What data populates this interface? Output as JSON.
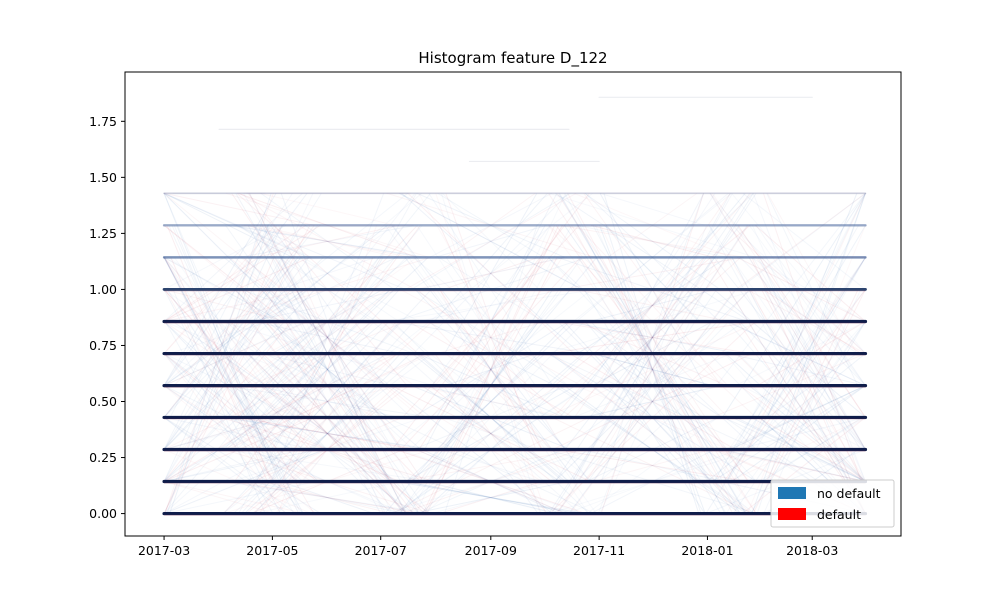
{
  "chart_data": {
    "type": "line",
    "title": "Histogram feature D_122",
    "xlabel": "",
    "ylabel": "",
    "x_tick_labels": [
      "2017-03",
      "2017-05",
      "2017-07",
      "2017-09",
      "2017-11",
      "2018-01",
      "2018-03"
    ],
    "x_tick_dates": [
      "2017-03-01",
      "2017-05-01",
      "2017-07-01",
      "2017-09-01",
      "2017-11-01",
      "2018-01-01",
      "2018-03-01"
    ],
    "xlim": [
      "2017-02-07",
      "2018-04-20"
    ],
    "y_ticks": [
      0.0,
      0.25,
      0.5,
      0.75,
      1.0,
      1.25,
      1.5,
      1.75
    ],
    "y_tick_labels": [
      "0.00",
      "0.25",
      "0.50",
      "0.75",
      "1.00",
      "1.25",
      "1.50",
      "1.75"
    ],
    "ylim": [
      -0.1,
      1.97
    ],
    "grid": false,
    "legend_position": "bottom-right",
    "levels": [
      0.0,
      0.143,
      0.286,
      0.429,
      0.571,
      0.714,
      0.857,
      1.0,
      1.143,
      1.286,
      1.429,
      1.571,
      1.714,
      1.857
    ],
    "level_strength": [
      0.9,
      0.95,
      1.0,
      1.0,
      1.0,
      0.95,
      0.85,
      0.7,
      0.5,
      0.35,
      0.12,
      0.04,
      0.03,
      0.03
    ],
    "series": [
      {
        "name": "no default",
        "color": "#1f77b4",
        "x_range": [
          "2017-03-01",
          "2018-03-31"
        ]
      },
      {
        "name": "default",
        "color": "#ff0000",
        "x_range": [
          "2017-03-01",
          "2018-03-31"
        ]
      }
    ],
    "crossing_peaks": [
      "2017-04-01",
      "2017-06-01",
      "2017-09-01",
      "2017-12-01",
      "2018-03-01"
    ]
  },
  "legend": {
    "items": [
      {
        "label": "no default",
        "color": "#1f77b4"
      },
      {
        "label": "default",
        "color": "#ff0000"
      }
    ]
  }
}
